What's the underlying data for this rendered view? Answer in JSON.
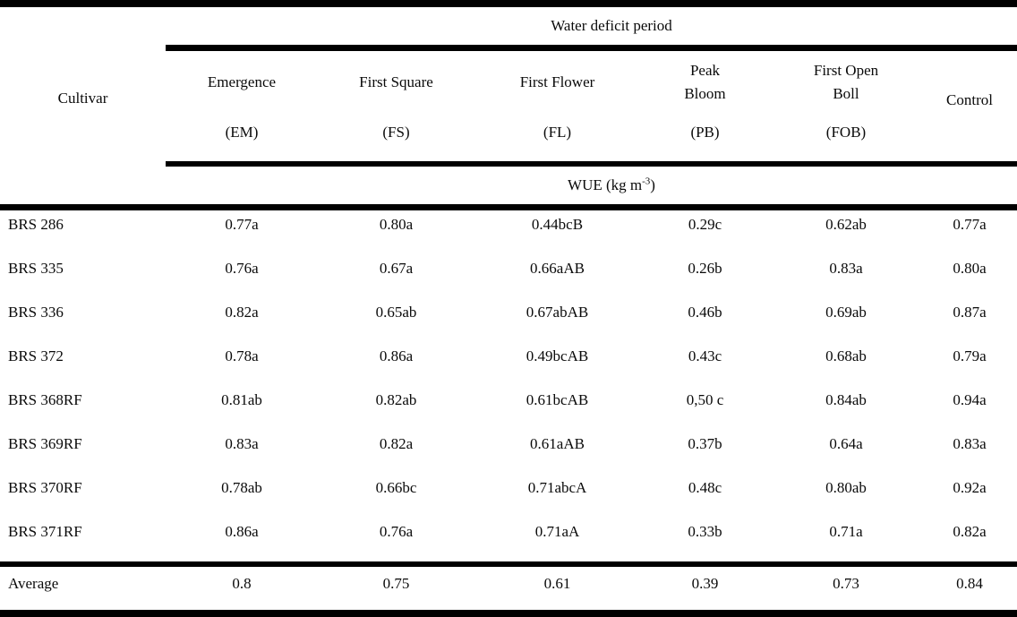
{
  "table": {
    "spanner": "Water deficit period",
    "cultivar_header": "Cultivar",
    "columns": [
      {
        "name": "Emergence",
        "abbr": "(EM)"
      },
      {
        "name": "First Square",
        "abbr": "(FS)"
      },
      {
        "name": "First Flower",
        "abbr": "(FL)"
      },
      {
        "name": "Peak Bloom",
        "abbr": "(PB)"
      },
      {
        "name": "First Open Boll",
        "abbr": "(FOB)"
      },
      {
        "name": "Control",
        "abbr": ""
      }
    ],
    "unit_row": {
      "prefix": "WUE (kg m",
      "sup": "-3",
      "suffix": ")"
    },
    "rows": [
      {
        "cultivar": "BRS 286",
        "values": [
          "0.77a",
          "0.80a",
          "0.44bcB",
          "0.29c",
          "0.62ab",
          "0.77a"
        ]
      },
      {
        "cultivar": "BRS 335",
        "values": [
          "0.76a",
          "0.67a",
          "0.66aAB",
          "0.26b",
          "0.83a",
          "0.80a"
        ]
      },
      {
        "cultivar": "BRS 336",
        "values": [
          "0.82a",
          "0.65ab",
          "0.67abAB",
          "0.46b",
          "0.69ab",
          "0.87a"
        ]
      },
      {
        "cultivar": "BRS 372",
        "values": [
          "0.78a",
          "0.86a",
          "0.49bcAB",
          "0.43c",
          "0.68ab",
          "0.79a"
        ]
      },
      {
        "cultivar": "BRS 368RF",
        "values": [
          "0.81ab",
          "0.82ab",
          "0.61bcAB",
          "0,50 c",
          "0.84ab",
          "0.94a"
        ]
      },
      {
        "cultivar": "BRS 369RF",
        "values": [
          "0.83a",
          "0.82a",
          "0.61aAB",
          "0.37b",
          "0.64a",
          "0.83a"
        ]
      },
      {
        "cultivar": "BRS 370RF",
        "values": [
          "0.78ab",
          "0.66bc",
          "0.71abcA",
          "0.48c",
          "0.80ab",
          "0.92a"
        ]
      },
      {
        "cultivar": "BRS 371RF",
        "values": [
          "0.86a",
          "0.76a",
          "0.71aA",
          "0.33b",
          "0.71a",
          "0.82a"
        ]
      }
    ],
    "footer": {
      "label": "Average",
      "values": [
        "0.8",
        "0.75",
        "0.61",
        "0.39",
        "0.73",
        "0.84"
      ]
    }
  }
}
